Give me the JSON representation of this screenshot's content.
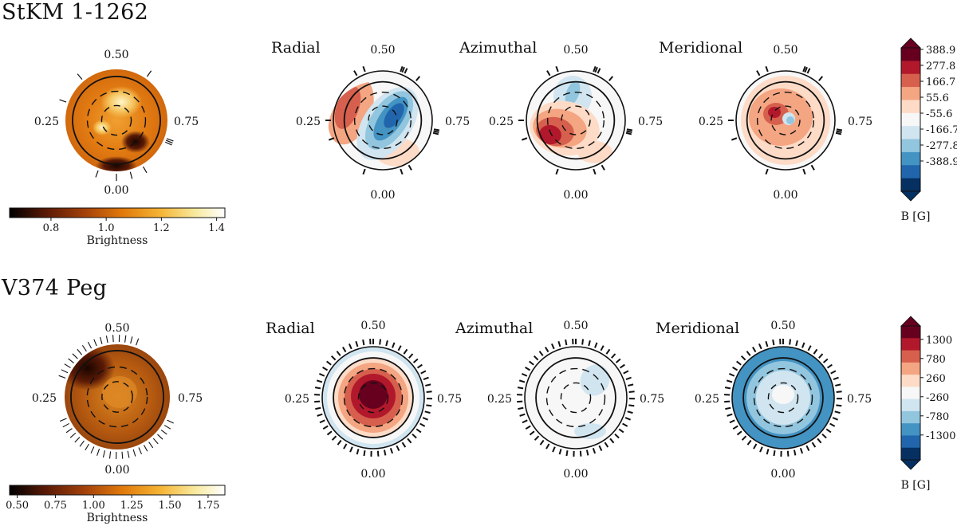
{
  "figure": {
    "rows": [
      {
        "star": "StKM 1-1262",
        "brightness_map": {
          "phases": [
            "0.50",
            "0.25",
            "0.75",
            "0.00"
          ]
        },
        "brightness_colorbar": {
          "label": "Brightness",
          "ticks": [
            "0.8",
            "1.0",
            "1.2",
            "1.4"
          ],
          "range": [
            0.65,
            1.43
          ],
          "tick_values": [
            0.8,
            1.0,
            1.2,
            1.4
          ]
        },
        "field_maps": [
          {
            "name": "Radial",
            "phases": [
              "0.50",
              "0.25",
              "0.75",
              "0.00"
            ]
          },
          {
            "name": "Azimuthal",
            "phases": [
              "0.50",
              "0.25",
              "0.75",
              "0.00"
            ]
          },
          {
            "name": "Meridional",
            "phases": [
              "0.50",
              "0.25",
              "0.75",
              "0.00"
            ]
          }
        ],
        "field_colorbar": {
          "label": "B [G]",
          "ticks": [
            "388.9",
            "277.8",
            "166.7",
            "55.6",
            "-55.6",
            "-166.7",
            "-277.8",
            "-388.9"
          ]
        }
      },
      {
        "star": "V374 Peg",
        "brightness_map": {
          "phases": [
            "0.50",
            "0.25",
            "0.75",
            "0.00"
          ]
        },
        "brightness_colorbar": {
          "label": "Brightness",
          "ticks": [
            "0.50",
            "0.75",
            "1.00",
            "1.25",
            "1.50",
            "1.75"
          ],
          "range": [
            0.45,
            1.86
          ],
          "tick_values": [
            0.5,
            0.75,
            1.0,
            1.25,
            1.5,
            1.75
          ]
        },
        "field_maps": [
          {
            "name": "Radial",
            "phases": [
              "0.50",
              "0.25",
              "0.75",
              "0.00"
            ]
          },
          {
            "name": "Azimuthal",
            "phases": [
              "0.50",
              "0.25",
              "0.75",
              "0.00"
            ]
          },
          {
            "name": "Meridional",
            "phases": [
              "0.50",
              "0.25",
              "0.75",
              "0.00"
            ]
          }
        ],
        "field_colorbar": {
          "label": "B [G]",
          "ticks": [
            "1300",
            "780",
            "260",
            "-260",
            "-780",
            "-1300"
          ]
        }
      }
    ],
    "colors": {
      "field_scale": [
        "#67001f",
        "#b2182b",
        "#d6604d",
        "#f4a582",
        "#fddbc7",
        "#f7f7f7",
        "#d1e5f0",
        "#92c5de",
        "#4393c3",
        "#2166ac",
        "#053061"
      ],
      "brightness_scale": [
        "#000000",
        "#5a1a06",
        "#a3410a",
        "#e0780a",
        "#f5b434",
        "#f8e99c",
        "#ffffff"
      ]
    }
  }
}
